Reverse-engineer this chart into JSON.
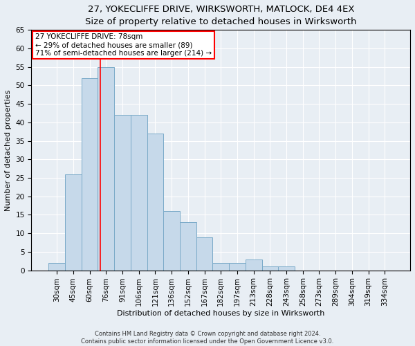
{
  "title": "27, YOKECLIFFE DRIVE, WIRKSWORTH, MATLOCK, DE4 4EX",
  "subtitle": "Size of property relative to detached houses in Wirksworth",
  "xlabel": "Distribution of detached houses by size in Wirksworth",
  "ylabel": "Number of detached properties",
  "bar_labels": [
    "30sqm",
    "45sqm",
    "60sqm",
    "76sqm",
    "91sqm",
    "106sqm",
    "121sqm",
    "136sqm",
    "152sqm",
    "167sqm",
    "182sqm",
    "197sqm",
    "213sqm",
    "228sqm",
    "243sqm",
    "258sqm",
    "273sqm",
    "289sqm",
    "304sqm",
    "319sqm",
    "334sqm"
  ],
  "bar_values": [
    2,
    26,
    52,
    55,
    42,
    42,
    37,
    16,
    13,
    9,
    2,
    2,
    3,
    1,
    1,
    0,
    0,
    0,
    0,
    0,
    0
  ],
  "bar_color": "#c6d9ea",
  "bar_edgecolor": "#7aaac8",
  "bar_linewidth": 0.7,
  "red_line_index": 3,
  "annotation_text": "27 YOKECLIFFE DRIVE: 78sqm\n← 29% of detached houses are smaller (89)\n71% of semi-detached houses are larger (214) →",
  "annotation_box_edgecolor": "red",
  "annotation_box_facecolor": "white",
  "annotation_fontsize": 7.5,
  "ylim": [
    0,
    65
  ],
  "yticks": [
    0,
    5,
    10,
    15,
    20,
    25,
    30,
    35,
    40,
    45,
    50,
    55,
    60,
    65
  ],
  "background_color": "#e8eef4",
  "plot_background": "#e8eef4",
  "grid_color": "white",
  "footer_line1": "Contains HM Land Registry data © Crown copyright and database right 2024.",
  "footer_line2": "Contains public sector information licensed under the Open Government Licence v3.0.",
  "title_fontsize": 9.5,
  "subtitle_fontsize": 8.5,
  "xlabel_fontsize": 8,
  "ylabel_fontsize": 8,
  "tick_fontsize": 7.5
}
